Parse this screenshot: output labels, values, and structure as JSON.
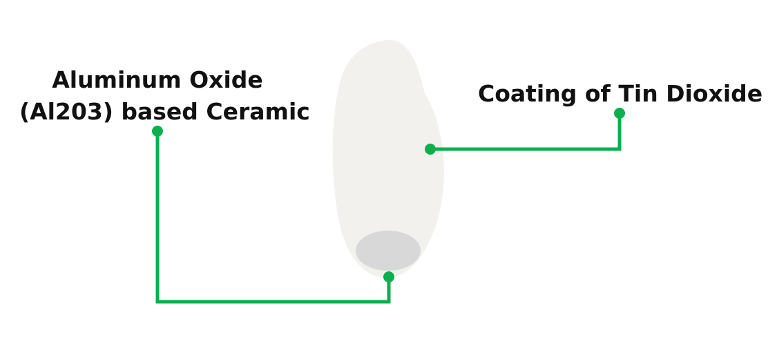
{
  "labels": {
    "ceramic": {
      "line1": "Aluminum Oxide",
      "line2": "(Al203) based Ceramic"
    },
    "coating": "Coating of Tin Dioxide"
  },
  "colors": {
    "leader_line": "#0bb04e",
    "pellet_body": "#f2f1ed",
    "pellet_base": "#d8d8d8",
    "text": "#111111"
  }
}
